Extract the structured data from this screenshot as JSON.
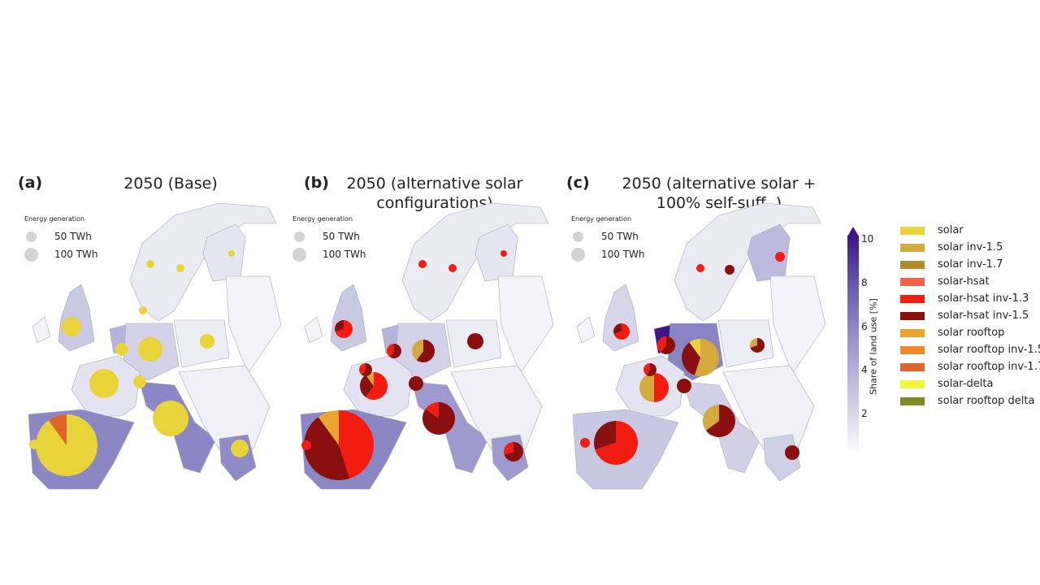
{
  "panels": [
    {
      "label": "(a)",
      "title": "2050 (Base)"
    },
    {
      "label": "(b)",
      "title": "2050 (alternative solar configurations)"
    },
    {
      "label": "(c)",
      "title": "2050 (alternative solar + 100% self-suff. )"
    }
  ],
  "size_legend": {
    "title": "Energy generation",
    "items": [
      "50 TWh",
      "100 TWh"
    ]
  },
  "colorbar": {
    "title": "Share of land use [%]",
    "ticks": [
      "2",
      "4",
      "6",
      "8",
      "10"
    ],
    "range": [
      0,
      10
    ],
    "extend": "max",
    "colors": [
      "#fafafd",
      "#3e1688"
    ]
  },
  "legend": [
    {
      "label": "solar",
      "color": "#e8d43a"
    },
    {
      "label": "solar inv-1.5",
      "color": "#d4aa3c"
    },
    {
      "label": "solar inv-1.7",
      "color": "#b38a2a"
    },
    {
      "label": "solar-hsat",
      "color": "#f0624a"
    },
    {
      "label": "solar-hsat inv-1.3",
      "color": "#f21d10"
    },
    {
      "label": "solar-hsat inv-1.5",
      "color": "#8a1010"
    },
    {
      "label": "solar rooftop",
      "color": "#eba52e"
    },
    {
      "label": "solar rooftop inv-1.5",
      "color": "#ef8a2a"
    },
    {
      "label": "solar rooftop inv-1.7",
      "color": "#e0652a"
    },
    {
      "label": "solar-delta",
      "color": "#f2f53a"
    },
    {
      "label": "solar rooftop delta",
      "color": "#7e8a26"
    }
  ],
  "chart_data": {
    "type": "map-pie",
    "size_unit": "TWh",
    "panels": [
      {
        "panel": "(a)",
        "pies": [
          {
            "twh": 190,
            "slices": {
              "solar": 0.9,
              "solar rooftop inv-1.7": 0.1
            }
          },
          {
            "twh": 65,
            "slices": {
              "solar": 1
            }
          },
          {
            "twh": 45,
            "slices": {
              "solar": 1
            }
          },
          {
            "twh": 32,
            "slices": {
              "solar": 1
            }
          },
          {
            "twh": 20,
            "slices": {
              "solar": 1
            }
          },
          {
            "twh": 12,
            "slices": {
              "solar": 1
            }
          },
          {
            "twh": 12,
            "slices": {
              "solar": 1
            }
          },
          {
            "twh": 6,
            "slices": {
              "solar": 1
            }
          },
          {
            "twh": 4,
            "slices": {
              "solar": 1
            }
          },
          {
            "twh": 3,
            "slices": {
              "solar": 1
            }
          },
          {
            "twh": 2,
            "slices": {
              "solar": 1
            }
          },
          {
            "twh": 5,
            "slices": {
              "solar": 1
            }
          },
          {
            "twh": 6,
            "slices": {
              "solar": 1
            }
          },
          {
            "twh": 6,
            "slices": {
              "solar": 1
            }
          }
        ]
      },
      {
        "panel": "(b)",
        "pies": [
          {
            "twh": 230,
            "slices": {
              "solar-hsat inv-1.3": 0.45,
              "solar-hsat inv-1.5": 0.45,
              "solar rooftop": 0.1
            }
          },
          {
            "twh": 55,
            "slices": {
              "solar-hsat inv-1.5": 0.85,
              "solar-hsat inv-1.3": 0.15
            }
          },
          {
            "twh": 40,
            "slices": {
              "solar-hsat inv-1.3": 0.6,
              "solar-hsat inv-1.5": 0.3,
              "solar inv-1.5": 0.1
            }
          },
          {
            "twh": 28,
            "slices": {
              "solar-hsat inv-1.5": 0.6,
              "solar inv-1.5": 0.4
            }
          },
          {
            "twh": 20,
            "slices": {
              "solar-hsat inv-1.5": 0.7,
              "solar-hsat inv-1.3": 0.3
            }
          },
          {
            "twh": 15,
            "slices": {
              "solar-hsat inv-1.3": 0.7,
              "solar-hsat inv-1.5": 0.3
            }
          },
          {
            "twh": 18,
            "slices": {
              "solar-hsat inv-1.5": 1
            }
          },
          {
            "twh": 6,
            "slices": {
              "solar-hsat inv-1.3": 1
            }
          },
          {
            "twh": 4,
            "slices": {
              "solar-hsat inv-1.3": 1
            }
          },
          {
            "twh": 3,
            "slices": {
              "solar-hsat inv-1.3": 1
            }
          },
          {
            "twh": 2,
            "slices": {
              "solar-hsat inv-1.3": 1
            }
          },
          {
            "twh": 8,
            "slices": {
              "solar-hsat inv-1.5": 0.6,
              "solar-hsat inv-1.3": 0.4
            }
          },
          {
            "twh": 8,
            "slices": {
              "solar-hsat inv-1.5": 1
            }
          },
          {
            "twh": 7,
            "slices": {
              "solar-hsat inv-1.5": 0.6,
              "solar-hsat inv-1.3": 0.4
            }
          }
        ]
      },
      {
        "panel": "(c)",
        "pies": [
          {
            "twh": 95,
            "slices": {
              "solar-hsat inv-1.3": 0.7,
              "solar-hsat inv-1.5": 0.3
            }
          },
          {
            "twh": 55,
            "slices": {
              "solar-hsat inv-1.5": 0.65,
              "solar inv-1.5": 0.35
            }
          },
          {
            "twh": 70,
            "slices": {
              "solar inv-1.5": 0.55,
              "solar-hsat inv-1.5": 0.35,
              "solar": 0.1
            }
          },
          {
            "twh": 40,
            "slices": {
              "solar-hsat inv-1.3": 0.5,
              "solar inv-1.5": 0.5
            }
          },
          {
            "twh": 18,
            "slices": {
              "solar-hsat inv-1.5": 1
            }
          },
          {
            "twh": 12,
            "slices": {
              "solar-hsat inv-1.3": 0.7,
              "solar-hsat inv-1.5": 0.3
            }
          },
          {
            "twh": 10,
            "slices": {
              "solar-hsat inv-1.5": 0.7,
              "solar inv-1.5": 0.3
            }
          },
          {
            "twh": 6,
            "slices": {
              "solar-hsat inv-1.3": 1
            }
          },
          {
            "twh": 6,
            "slices": {
              "solar-hsat inv-1.5": 1
            }
          },
          {
            "twh": 5,
            "slices": {
              "solar-hsat inv-1.3": 1
            }
          },
          {
            "twh": 3,
            "slices": {
              "solar-hsat inv-1.3": 1
            }
          },
          {
            "twh": 12,
            "slices": {
              "solar-hsat inv-1.5": 0.6,
              "solar-hsat inv-1.3": 0.4
            }
          },
          {
            "twh": 10,
            "slices": {
              "solar-hsat inv-1.5": 1
            }
          },
          {
            "twh": 9,
            "slices": {
              "solar-hsat inv-1.5": 0.6,
              "solar-hsat inv-1.3": 0.4
            }
          }
        ]
      }
    ]
  }
}
